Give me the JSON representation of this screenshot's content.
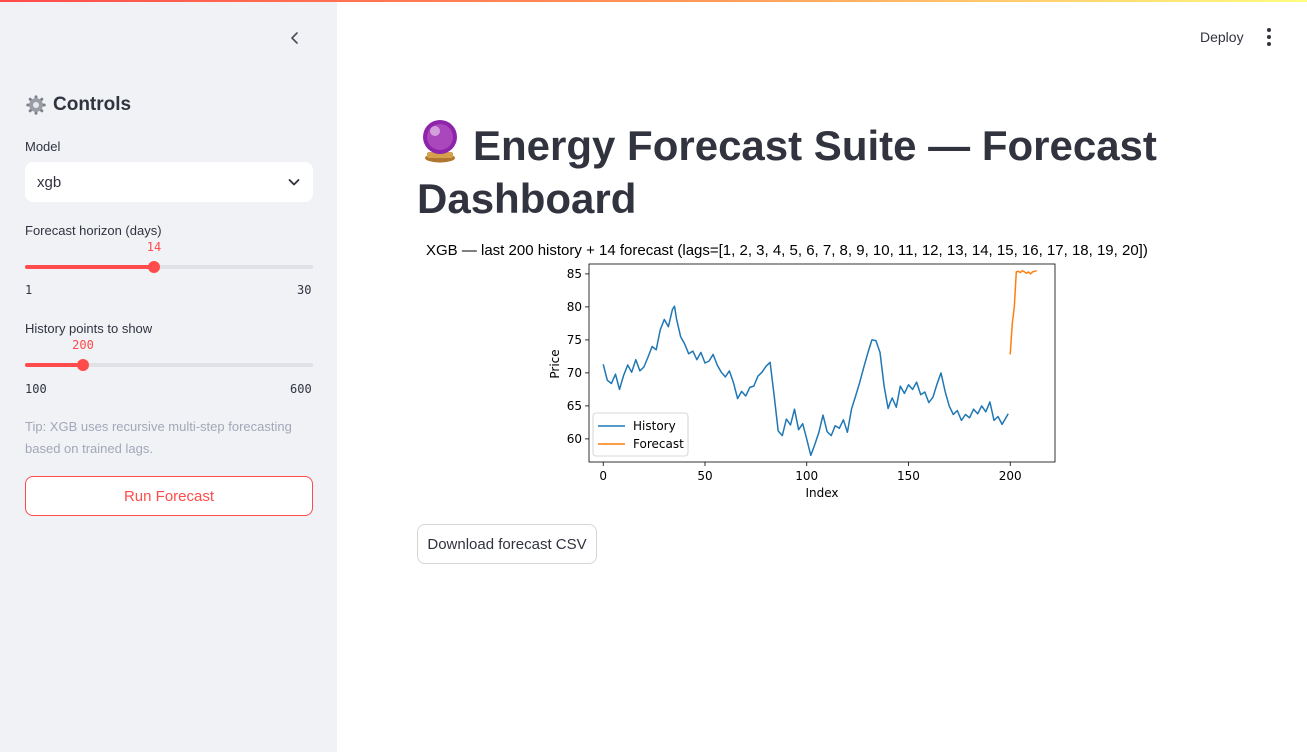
{
  "header": {
    "deploy_label": "Deploy"
  },
  "sidebar": {
    "title": "Controls",
    "model": {
      "label": "Model",
      "value": "xgb"
    },
    "horizon": {
      "label": "Forecast horizon (days)",
      "value": "14",
      "min": "1",
      "max": "30"
    },
    "history": {
      "label": "History points to show",
      "value": "200",
      "min": "100",
      "max": "600"
    },
    "tip": "Tip: XGB uses recursive multi-step forecasting based on trained lags.",
    "run_label": "Run Forecast"
  },
  "main": {
    "title": "Energy Forecast Suite — Forecast Dashboard",
    "download_label": "Download forecast CSV"
  },
  "colors": {
    "accent": "#ff4b4b",
    "history": "#1f77b4",
    "forecast": "#ff7f0e"
  },
  "chart_data": {
    "type": "line",
    "title": "XGB — last 200 history + 14 forecast (lags=[1, 2, 3, 4, 5, 6, 7, 8, 9, 10, 11, 12, 13, 14, 15, 16, 17, 18, 19, 20])",
    "xlabel": "Index",
    "ylabel": "Price",
    "xlim": [
      -7,
      222
    ],
    "ylim": [
      56.5,
      86.5
    ],
    "xticks": [
      0,
      50,
      100,
      150,
      200
    ],
    "yticks": [
      60,
      65,
      70,
      75,
      80,
      85
    ],
    "legend": "lower-left",
    "grid": false,
    "series": [
      {
        "name": "History",
        "x": [
          0,
          2,
          4,
          6,
          8,
          10,
          12,
          14,
          16,
          18,
          20,
          22,
          24,
          26,
          28,
          30,
          32,
          34,
          35,
          36,
          38,
          40,
          42,
          44,
          46,
          48,
          50,
          52,
          54,
          56,
          58,
          60,
          62,
          64,
          66,
          68,
          70,
          72,
          74,
          76,
          78,
          80,
          82,
          84,
          86,
          88,
          90,
          92,
          94,
          96,
          98,
          100,
          102,
          104,
          106,
          108,
          110,
          112,
          114,
          116,
          118,
          120,
          122,
          124,
          126,
          128,
          130,
          132,
          134,
          136,
          138,
          140,
          141,
          142,
          144,
          146,
          148,
          150,
          152,
          154,
          156,
          158,
          160,
          162,
          164,
          166,
          168,
          170,
          172,
          174,
          176,
          178,
          180,
          182,
          184,
          186,
          188,
          190,
          192,
          194,
          196,
          199
        ],
        "y": [
          71.3,
          68.9,
          68.4,
          69.8,
          67.5,
          69.6,
          71.2,
          70.1,
          72.0,
          70.3,
          70.9,
          72.4,
          74.0,
          73.5,
          76.5,
          78.1,
          77.0,
          79.6,
          80.1,
          78.2,
          75.5,
          74.4,
          72.9,
          73.3,
          72.0,
          73.1,
          71.5,
          71.8,
          72.8,
          71.2,
          70.1,
          69.4,
          70.3,
          68.5,
          66.1,
          67.2,
          66.5,
          67.8,
          68.0,
          69.5,
          70.1,
          71.0,
          71.6,
          66.5,
          61.2,
          60.5,
          63.0,
          62.1,
          64.5,
          61.4,
          62.3,
          60.0,
          57.5,
          59.2,
          61.0,
          63.6,
          61.1,
          60.5,
          62.0,
          61.6,
          62.9,
          61.0,
          64.5,
          66.5,
          68.5,
          70.8,
          73.0,
          75.0,
          74.9,
          73.1,
          68.0,
          64.6,
          65.5,
          66.2,
          64.8,
          68.0,
          66.9,
          68.2,
          67.5,
          68.6,
          66.7,
          67.1,
          65.5,
          66.3,
          68.3,
          70.0,
          67.2,
          65.0,
          63.7,
          64.3,
          62.8,
          63.7,
          63.2,
          64.5,
          63.8,
          65.0,
          64.1,
          65.6,
          62.8,
          63.4,
          62.2,
          63.8
        ]
      },
      {
        "name": "Forecast",
        "x": [
          200,
          201,
          202,
          203,
          204,
          205,
          206,
          207,
          208,
          209,
          210,
          211,
          212,
          213
        ],
        "y": [
          72.8,
          77.5,
          80.0,
          85.3,
          85.4,
          85.2,
          85.5,
          85.3,
          85.1,
          85.3,
          85.0,
          85.3,
          85.4,
          85.5
        ]
      }
    ]
  }
}
